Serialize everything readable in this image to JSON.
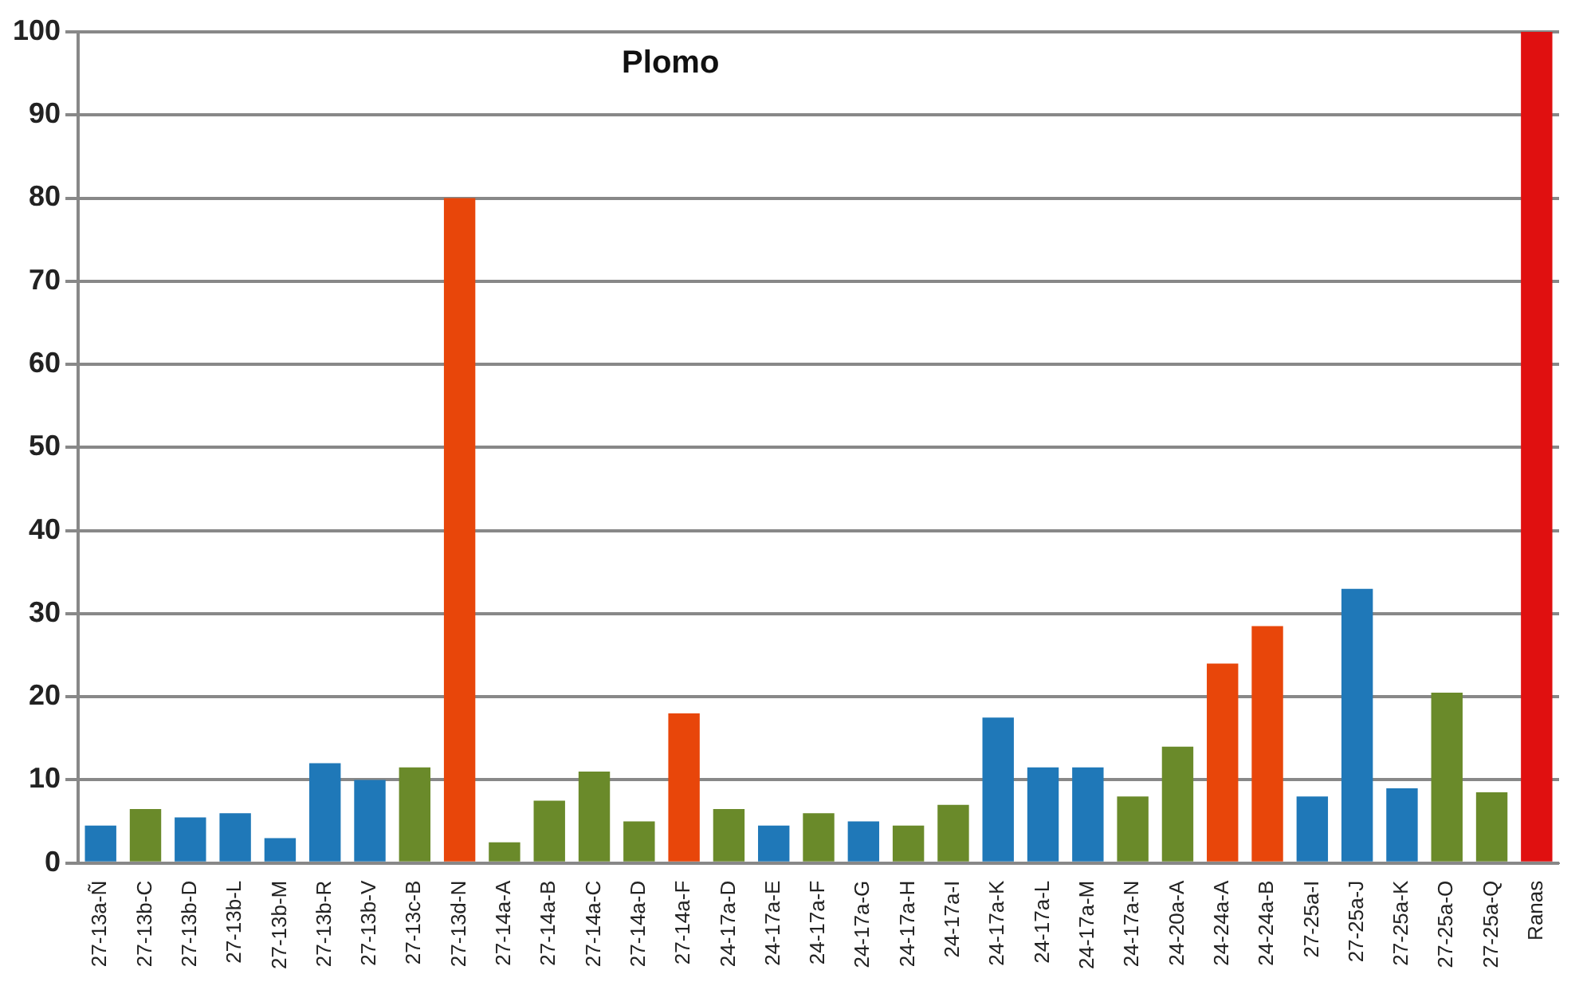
{
  "chart_data": {
    "type": "bar",
    "title": "Plomo",
    "categories": [
      "27-13a-Ñ",
      "27-13b-C",
      "27-13b-D",
      "27-13b-L",
      "27-13b-M",
      "27-13b-R",
      "27-13b-V",
      "27-13c-B",
      "27-13d-N",
      "27-14a-A",
      "27-14a-B",
      "27-14a-C",
      "27-14a-D",
      "27-14a-F",
      "24-17a-D",
      "24-17a-E",
      "24-17a-F",
      "24-17a-G",
      "24-17a-H",
      "24-17a-I",
      "24-17a-K",
      "24-17a-L",
      "24-17a-M",
      "24-17a-N",
      "24-20a-A",
      "24-24a-A",
      "24-24a-B",
      "27-25a-I",
      "27-25a-J",
      "27-25a-K",
      "27-25a-O",
      "27-25a-Q",
      "Ranas"
    ],
    "values": [
      4.5,
      6.5,
      5.5,
      6,
      3,
      12,
      10,
      11.5,
      80,
      2.5,
      7.5,
      11,
      5,
      18,
      6.5,
      4.5,
      6,
      5,
      4.5,
      7,
      17.5,
      11.5,
      11.5,
      8,
      14,
      24,
      28.5,
      8,
      33,
      9,
      20.5,
      8.5,
      100
    ],
    "colors": [
      "#1f78b8",
      "#6a8a2a",
      "#1f78b8",
      "#1f78b8",
      "#1f78b8",
      "#1f78b8",
      "#1f78b8",
      "#6a8a2a",
      "#e8460a",
      "#6a8a2a",
      "#6a8a2a",
      "#6a8a2a",
      "#6a8a2a",
      "#e8460a",
      "#6a8a2a",
      "#1f78b8",
      "#6a8a2a",
      "#1f78b8",
      "#6a8a2a",
      "#6a8a2a",
      "#1f78b8",
      "#1f78b8",
      "#1f78b8",
      "#6a8a2a",
      "#6a8a2a",
      "#e8460a",
      "#e8460a",
      "#1f78b8",
      "#1f78b8",
      "#1f78b8",
      "#6a8a2a",
      "#6a8a2a",
      "#e01010"
    ],
    "ylim": [
      0,
      100
    ],
    "yticks": [
      0,
      10,
      20,
      30,
      40,
      50,
      60,
      70,
      80,
      90,
      100
    ],
    "grid": "y",
    "legend": false
  }
}
